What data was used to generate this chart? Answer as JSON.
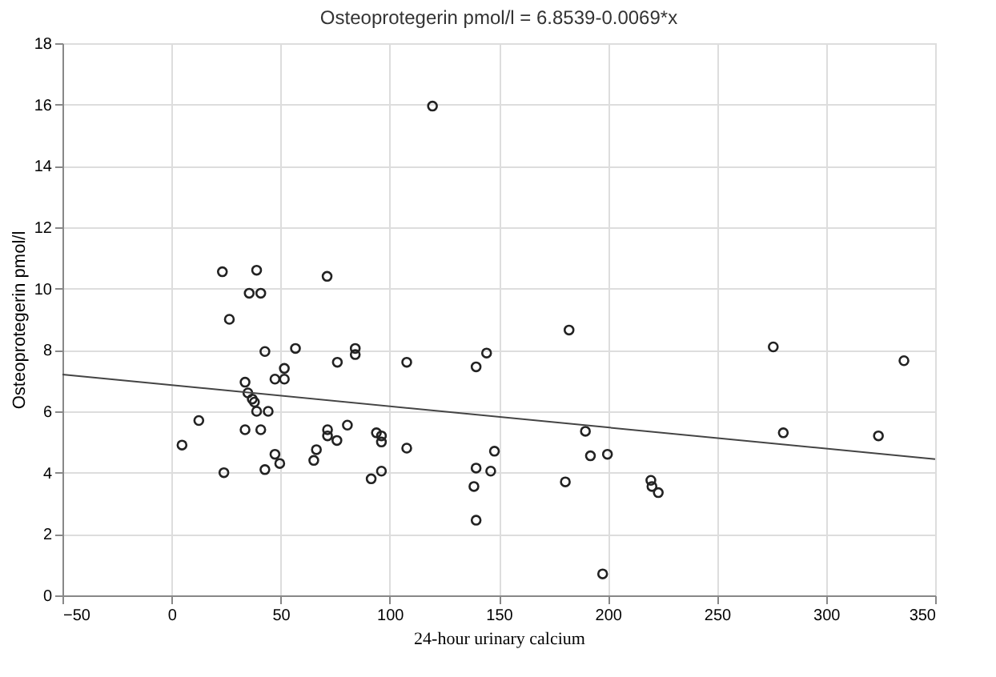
{
  "chart_data": {
    "type": "scatter",
    "title": "Osteoprotegerin pmol/l = 6.8539-0.0069*x",
    "xlabel": "24-hour urinary calcium",
    "ylabel": "Osteoprotegerin pmol/l",
    "xlim": [
      -50,
      350
    ],
    "xticks": [
      -50,
      0,
      50,
      100,
      150,
      200,
      250,
      300,
      350
    ],
    "ylim": [
      0,
      18
    ],
    "yticks": [
      0,
      2,
      4,
      6,
      8,
      10,
      12,
      14,
      16,
      18
    ],
    "grid": true,
    "series": [
      {
        "color": "#222222",
        "marker": "circle",
        "x": [
          4.8,
          12.5,
          24,
          26.5,
          35.6,
          40.9,
          33.7,
          35,
          37,
          38,
          39,
          33.7,
          40.9,
          42.8,
          44.3,
          47.4,
          51.7,
          51.7,
          47.4,
          49.6,
          42.8,
          56.8,
          66.4,
          65.2,
          71.5,
          71.5,
          76,
          75.8,
          80.6,
          84.2,
          84.2,
          91.5,
          93.9,
          96.2,
          96.2,
          96.2,
          107.8,
          107.8,
          139.6,
          139.6,
          138.6,
          139.6,
          23.3,
          39,
          71.3,
          119.6,
          144.4,
          148,
          146.3,
          182.2,
          180.5,
          189.7,
          192,
          199.8,
          197.6,
          219.7,
          220.2,
          223.1,
          275.8,
          280.4,
          324,
          335.7
        ],
        "values": [
          4.9,
          5.7,
          4.0,
          9.0,
          9.85,
          9.85,
          6.95,
          6.6,
          6.4,
          6.3,
          6.0,
          5.4,
          5.4,
          7.95,
          6.0,
          7.05,
          7.4,
          7.05,
          4.6,
          4.3,
          4.1,
          8.05,
          4.75,
          4.4,
          5.4,
          5.2,
          7.6,
          5.05,
          5.55,
          8.05,
          7.85,
          3.8,
          5.3,
          5.2,
          5.0,
          4.05,
          7.6,
          4.8,
          7.45,
          4.15,
          3.55,
          2.45,
          10.55,
          10.6,
          10.4,
          15.95,
          7.9,
          4.7,
          4.05,
          8.65,
          3.7,
          5.35,
          4.55,
          4.6,
          0.7,
          3.75,
          3.55,
          3.35,
          8.1,
          5.3,
          5.2,
          7.65
        ]
      },
      {
        "type": "line",
        "color": "#444444",
        "x": [
          -50,
          350
        ],
        "values": [
          7.2,
          4.44
        ]
      }
    ]
  }
}
